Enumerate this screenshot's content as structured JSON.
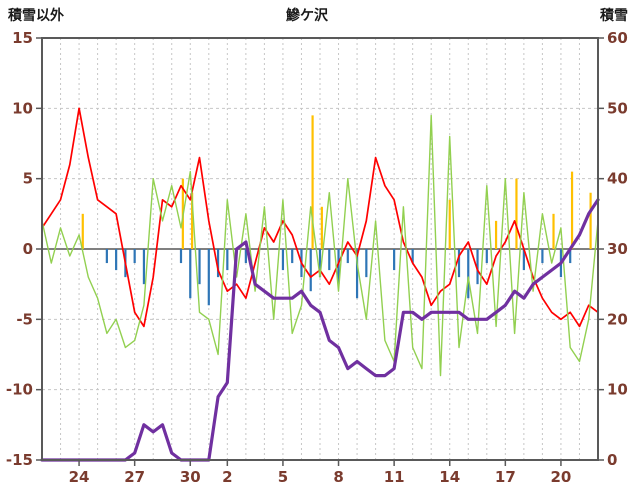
{
  "chart_data": {
    "type": "line",
    "title": "鰺ケ沢",
    "left_axis": {
      "label": "積雪以外",
      "min": -15,
      "max": 15,
      "ticks": [
        15,
        10,
        5,
        0,
        -5,
        -10,
        -15
      ]
    },
    "right_axis": {
      "label": "積雪",
      "min": 0,
      "max": 60,
      "ticks": [
        60,
        50,
        40,
        30,
        20,
        10,
        0
      ]
    },
    "x_axis": {
      "domain": [
        22,
        52
      ],
      "gridline_every_days": 1,
      "tick_labels": [
        "24",
        "27",
        "30",
        "2",
        "5",
        "8",
        "11",
        "14",
        "17",
        "20"
      ],
      "tick_positions": [
        24,
        27,
        30,
        32,
        35,
        38,
        41,
        44,
        47,
        50
      ]
    },
    "x_start": 22,
    "x_step": 0.5,
    "series": [
      {
        "name": "temperature",
        "color": "#ff0000",
        "axis": "left",
        "width": 1.7,
        "values": [
          1.5,
          2.5,
          3.5,
          6,
          10,
          6.5,
          3.5,
          3,
          2.5,
          -1,
          -4.5,
          -5.5,
          -2,
          3.5,
          3,
          4.5,
          3.5,
          6.5,
          2,
          -1.5,
          -3,
          -2.5,
          -3.5,
          -1,
          1.5,
          0.5,
          2,
          1,
          -1,
          -2,
          -1.5,
          -2.5,
          -1,
          0.5,
          -0.5,
          2,
          6.5,
          4.5,
          3.5,
          0.5,
          -1,
          -2,
          -4,
          -3,
          -2.5,
          -0.5,
          0.5,
          -1.5,
          -2.5,
          -0.5,
          0.5,
          2,
          0,
          -2,
          -3.5,
          -4.5,
          -5,
          -4.5,
          -5.5,
          -4,
          -4.5
        ]
      },
      {
        "name": "wind",
        "color": "#92d050",
        "axis": "left",
        "width": 1.4,
        "values": [
          2,
          -1,
          1.5,
          -0.5,
          1,
          -2,
          -3.5,
          -6,
          -5,
          -7,
          -6.5,
          -4,
          5,
          2,
          4.5,
          1.5,
          5.5,
          -4.5,
          -5,
          -7.5,
          3.5,
          -2,
          2.5,
          -3,
          3,
          -5,
          3.5,
          -6,
          -4,
          3,
          -2,
          4,
          -3,
          5,
          -1,
          -5,
          2,
          -6.5,
          -8,
          3,
          -7,
          -8.5,
          9.5,
          -9,
          8,
          -7,
          -2,
          -6,
          4.5,
          -5.5,
          5,
          -6,
          4,
          -3,
          2.5,
          -1,
          1.5,
          -7,
          -8,
          -5,
          2
        ]
      },
      {
        "name": "snow_depth",
        "color": "#7030a0",
        "axis": "right",
        "width": 3.2,
        "values": [
          0,
          0,
          0,
          0,
          0,
          0,
          0,
          0,
          0,
          0,
          1,
          5,
          4,
          5,
          1,
          0,
          0,
          0,
          0,
          9,
          11,
          30,
          31,
          25,
          24,
          23,
          23,
          23,
          24,
          22,
          21,
          17,
          16,
          13,
          14,
          13,
          12,
          12,
          13,
          21,
          21,
          20,
          21,
          21,
          21,
          21,
          20,
          20,
          20,
          21,
          22,
          24,
          23,
          25,
          26,
          27,
          28,
          30,
          32,
          35,
          37
        ]
      }
    ],
    "bars": [
      {
        "name": "precipitation",
        "color": "#2e75b6",
        "direction": "down",
        "points": [
          [
            25.5,
            -1
          ],
          [
            26,
            -1.5
          ],
          [
            26.5,
            -2
          ],
          [
            27,
            -1
          ],
          [
            27.5,
            -2.5
          ],
          [
            29.5,
            -1
          ],
          [
            30,
            -3.5
          ],
          [
            30.5,
            -2.5
          ],
          [
            31,
            -4
          ],
          [
            31.5,
            -2
          ],
          [
            32,
            -1.5
          ],
          [
            33,
            -1
          ],
          [
            35,
            -1.5
          ],
          [
            35.5,
            -1
          ],
          [
            36,
            -2
          ],
          [
            36.5,
            -3
          ],
          [
            37,
            -2
          ],
          [
            37.5,
            -1.5
          ],
          [
            38,
            -2.5
          ],
          [
            38.5,
            -1
          ],
          [
            39,
            -3.5
          ],
          [
            39.5,
            -2
          ],
          [
            41,
            -1.5
          ],
          [
            42,
            -1
          ],
          [
            44.5,
            -2
          ],
          [
            45,
            -3.5
          ],
          [
            45.5,
            -2.5
          ],
          [
            46,
            -1
          ],
          [
            48,
            -1.5
          ],
          [
            49,
            -1
          ],
          [
            50,
            -2
          ],
          [
            50.5,
            -1
          ]
        ]
      },
      {
        "name": "sunshine",
        "color": "#ffc000",
        "direction": "up",
        "points": [
          [
            24.2,
            2.5
          ],
          [
            29.6,
            5
          ],
          [
            30.1,
            4
          ],
          [
            36.6,
            9.5
          ],
          [
            37.1,
            3
          ],
          [
            44,
            3.5
          ],
          [
            46.5,
            2
          ],
          [
            47.6,
            5
          ],
          [
            49.6,
            2.5
          ],
          [
            50.6,
            5.5
          ],
          [
            51.6,
            4
          ]
        ]
      }
    ],
    "colors": {
      "grid": "#c6c6c6",
      "zero_line": "#808080",
      "frame": "#595959",
      "axis_text": "#7a3b2e",
      "title_text": "#1a1a1a"
    },
    "legend": "none",
    "grid": "on"
  }
}
